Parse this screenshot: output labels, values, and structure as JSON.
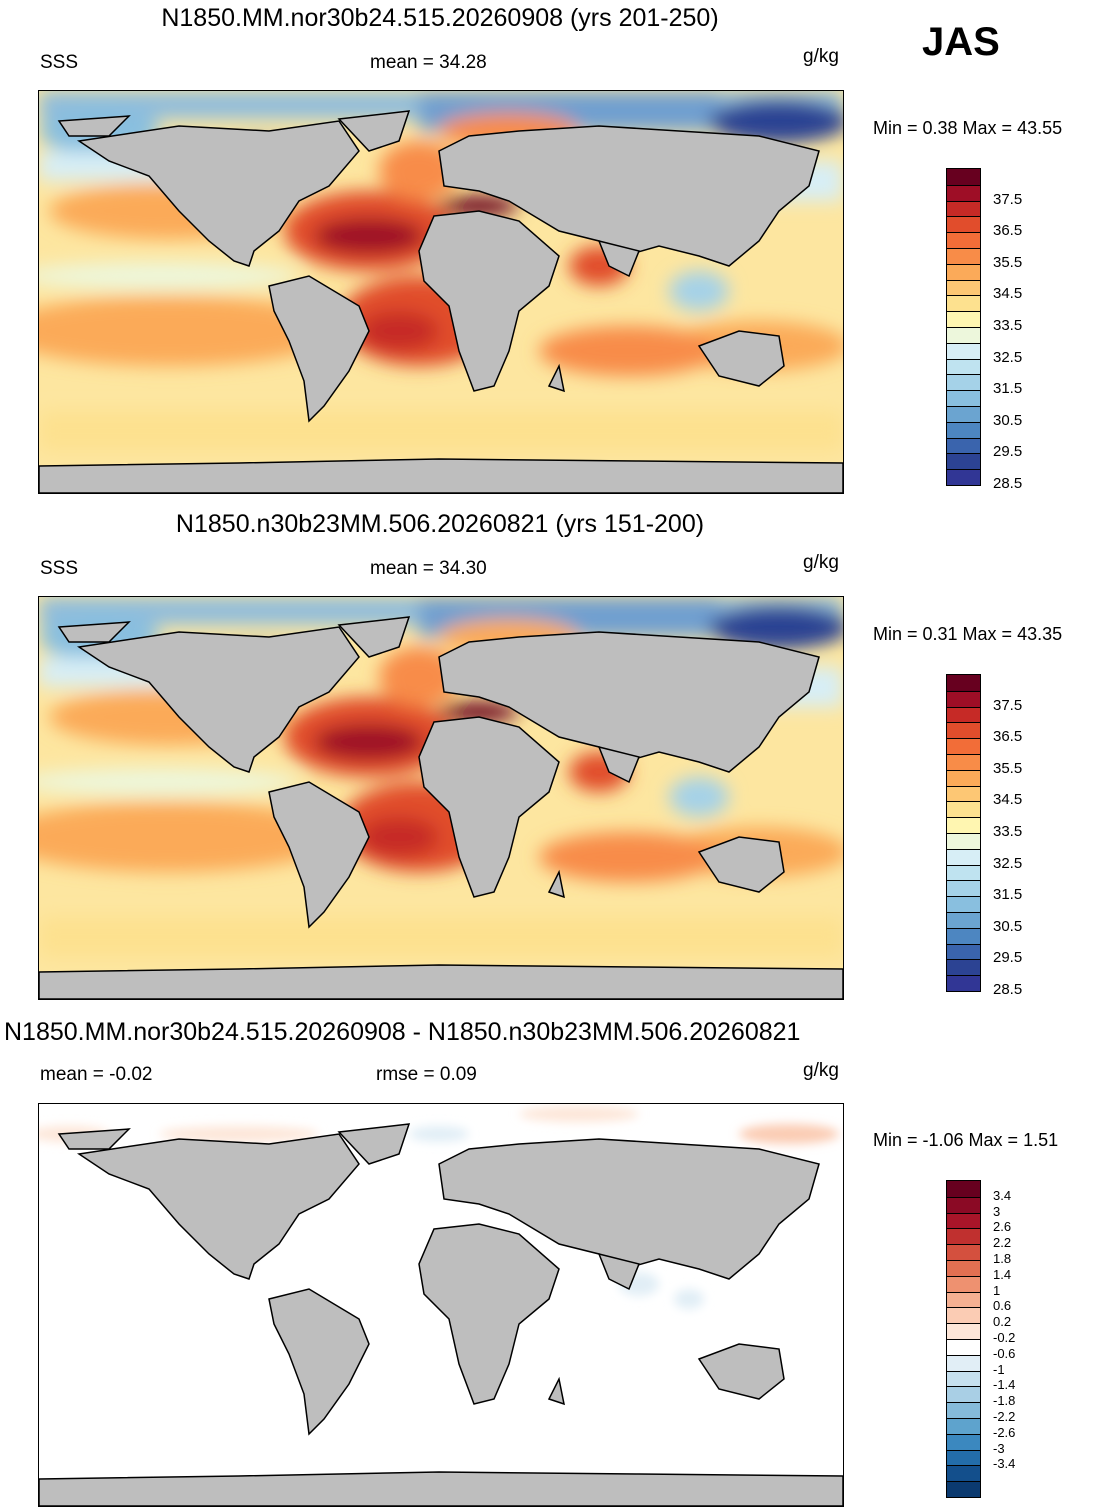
{
  "season": "JAS",
  "panels": [
    {
      "title": "N1850.MM.nor30b24.515.20260908 (yrs 201-250)",
      "left_label": "SSS",
      "center_label": "mean =  34.28",
      "units": "g/kg",
      "minmax": "Min =   0.38 Max =  43.55",
      "field": "abs"
    },
    {
      "title": "N1850.n30b23MM.506.20260821 (yrs 151-200)",
      "left_label": "SSS",
      "center_label": "mean =  34.30",
      "units": "g/kg",
      "minmax": "Min =   0.31 Max =  43.35",
      "field": "abs"
    },
    {
      "title": "N1850.MM.nor30b24.515.20260908 - N1850.n30b23MM.506.20260821",
      "left_label": "mean =  -0.02",
      "center_label": "rmse =   0.09",
      "units": "g/kg",
      "minmax": "Min =  -1.06 Max =   1.51",
      "field": "diff"
    }
  ],
  "colorbars": {
    "abs": {
      "labels": [
        "37.5",
        "36.5",
        "35.5",
        "34.5",
        "33.5",
        "32.5",
        "31.5",
        "30.5",
        "29.5",
        "28.5"
      ],
      "colors": [
        "#67001f",
        "#9e0e26",
        "#c62a26",
        "#e14d2c",
        "#f26d38",
        "#f88c48",
        "#fbaa59",
        "#fdc774",
        "#fde18f",
        "#fff6b1",
        "#edf7dc",
        "#d7eef6",
        "#bfe3f0",
        "#a5d2e8",
        "#89bfdf",
        "#6ba4d0",
        "#4d86c1",
        "#3a64ad",
        "#2c4393",
        "#313695"
      ]
    },
    "diff": {
      "labels": [
        "3.4",
        "3",
        "2.6",
        "2.2",
        "1.8",
        "1.4",
        "1",
        "0.6",
        "0.2",
        "-0.2",
        "-0.6",
        "-1",
        "-1.4",
        "-1.8",
        "-2.2",
        "-2.6",
        "-3",
        "-3.4"
      ],
      "colors": [
        "#67001f",
        "#8b0a25",
        "#a81529",
        "#c0302f",
        "#d4503e",
        "#e27052",
        "#ee9170",
        "#f5b092",
        "#fbccb4",
        "#fde6d8",
        "#ffffff",
        "#e1eef6",
        "#c6e0ee",
        "#a9cfe5",
        "#86bbda",
        "#5ea3cd",
        "#3b88bf",
        "#236daa",
        "#134f8c",
        "#0b3a70"
      ]
    }
  }
}
